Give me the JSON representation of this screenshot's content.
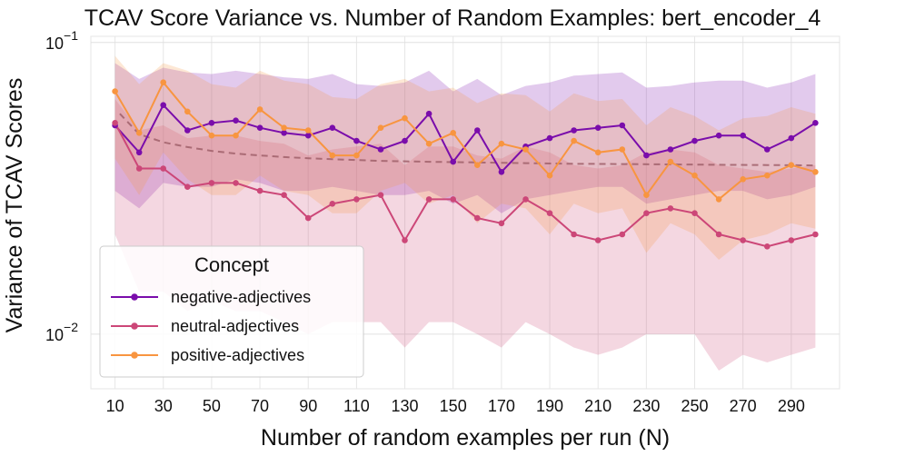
{
  "chart_data": {
    "type": "line",
    "title": "TCAV Score Variance vs. Number of Random Examples: bert_encoder_4",
    "xlabel": "Number of random examples per run (N)",
    "ylabel": "Variance of TCAV Scores",
    "yscale": "log",
    "ylim": [
      0.0065,
      0.105
    ],
    "xlim": [
      0,
      310
    ],
    "x_ticks": [
      10,
      30,
      50,
      70,
      90,
      110,
      130,
      150,
      170,
      190,
      210,
      230,
      250,
      270,
      290
    ],
    "x_tick_labels": [
      "10",
      "30",
      "50",
      "70",
      "90",
      "110",
      "130",
      "150",
      "170",
      "190",
      "210",
      "230",
      "250",
      "270",
      "290"
    ],
    "y_ticks": [
      {
        "value": 0.01,
        "base": "10",
        "exp": "−2"
      },
      {
        "value": 0.1,
        "base": "10",
        "exp": "−1"
      }
    ],
    "grid": true,
    "x": [
      10,
      20,
      30,
      40,
      50,
      60,
      70,
      80,
      90,
      100,
      110,
      120,
      130,
      140,
      150,
      160,
      170,
      180,
      190,
      200,
      210,
      220,
      230,
      240,
      250,
      260,
      270,
      280,
      290,
      300
    ],
    "series": [
      {
        "name": "negative-adjectives",
        "color": "#7a0dab",
        "values": [
          0.052,
          0.042,
          0.061,
          0.05,
          0.053,
          0.054,
          0.051,
          0.049,
          0.048,
          0.051,
          0.046,
          0.043,
          0.046,
          0.057,
          0.039,
          0.05,
          0.036,
          0.044,
          0.047,
          0.05,
          0.051,
          0.052,
          0.041,
          0.043,
          0.046,
          0.048,
          0.048,
          0.043,
          0.047,
          0.053
        ],
        "lower": [
          0.031,
          0.027,
          0.033,
          0.032,
          0.032,
          0.034,
          0.033,
          0.031,
          0.031,
          0.032,
          0.031,
          0.03,
          0.03,
          0.031,
          0.028,
          0.03,
          0.026,
          0.029,
          0.03,
          0.031,
          0.032,
          0.032,
          0.028,
          0.029,
          0.03,
          0.031,
          0.031,
          0.029,
          0.03,
          0.032
        ],
        "upper": [
          0.085,
          0.075,
          0.082,
          0.079,
          0.078,
          0.08,
          0.078,
          0.076,
          0.075,
          0.078,
          0.072,
          0.071,
          0.073,
          0.08,
          0.068,
          0.075,
          0.066,
          0.071,
          0.073,
          0.077,
          0.078,
          0.079,
          0.07,
          0.071,
          0.073,
          0.074,
          0.074,
          0.07,
          0.073,
          0.078
        ]
      },
      {
        "name": "neutral-adjectives",
        "color": "#cc4778",
        "values": [
          0.053,
          0.037,
          0.037,
          0.032,
          0.033,
          0.033,
          0.031,
          0.03,
          0.025,
          0.028,
          0.029,
          0.03,
          0.021,
          0.029,
          0.029,
          0.025,
          0.024,
          0.029,
          0.026,
          0.022,
          0.021,
          0.022,
          0.026,
          0.027,
          0.026,
          0.022,
          0.021,
          0.02,
          0.021,
          0.022
        ],
        "lower": [
          0.022,
          0.014,
          0.014,
          0.012,
          0.013,
          0.012,
          0.012,
          0.011,
          0.01,
          0.011,
          0.011,
          0.011,
          0.009,
          0.011,
          0.011,
          0.01,
          0.009,
          0.011,
          0.01,
          0.009,
          0.0085,
          0.009,
          0.01,
          0.01,
          0.01,
          0.0075,
          0.0085,
          0.008,
          0.0085,
          0.009
        ],
        "upper": [
          0.064,
          0.05,
          0.052,
          0.047,
          0.048,
          0.048,
          0.046,
          0.045,
          0.041,
          0.043,
          0.044,
          0.045,
          0.038,
          0.044,
          0.044,
          0.041,
          0.04,
          0.044,
          0.042,
          0.038,
          0.037,
          0.038,
          0.042,
          0.043,
          0.042,
          0.038,
          0.037,
          0.036,
          0.037,
          0.038
        ]
      },
      {
        "name": "positive-adjectives",
        "color": "#f89540",
        "values": [
          0.068,
          0.049,
          0.073,
          0.058,
          0.048,
          0.048,
          0.059,
          0.051,
          0.05,
          0.041,
          0.041,
          0.051,
          0.055,
          0.045,
          0.049,
          0.038,
          0.045,
          0.043,
          0.035,
          0.046,
          0.042,
          0.043,
          0.03,
          0.039,
          0.035,
          0.029,
          0.034,
          0.035,
          0.038,
          0.036
        ],
        "lower": [
          0.04,
          0.03,
          0.042,
          0.034,
          0.03,
          0.03,
          0.035,
          0.031,
          0.03,
          0.026,
          0.026,
          0.031,
          0.033,
          0.028,
          0.03,
          0.024,
          0.028,
          0.027,
          0.022,
          0.028,
          0.026,
          0.027,
          0.019,
          0.024,
          0.022,
          0.018,
          0.021,
          0.022,
          0.024,
          0.023
        ],
        "upper": [
          0.09,
          0.072,
          0.085,
          0.08,
          0.072,
          0.07,
          0.08,
          0.074,
          0.072,
          0.065,
          0.064,
          0.072,
          0.075,
          0.068,
          0.07,
          0.062,
          0.067,
          0.066,
          0.058,
          0.067,
          0.063,
          0.064,
          0.052,
          0.06,
          0.056,
          0.05,
          0.055,
          0.056,
          0.06,
          0.057
        ]
      }
    ],
    "trend": {
      "name": "fit",
      "color": "#a0606a",
      "x": [
        12,
        20,
        30,
        40,
        50,
        60,
        70,
        80,
        90,
        100,
        120,
        140,
        160,
        180,
        200,
        220,
        240,
        260,
        280,
        300
      ],
      "values": [
        0.057,
        0.0485,
        0.0455,
        0.0438,
        0.0425,
        0.0416,
        0.041,
        0.0405,
        0.0401,
        0.0398,
        0.0393,
        0.039,
        0.0388,
        0.0386,
        0.0384,
        0.0383,
        0.0382,
        0.0381,
        0.038,
        0.0379
      ]
    },
    "legend": {
      "title": "Concept",
      "position": "bottom-left"
    }
  }
}
